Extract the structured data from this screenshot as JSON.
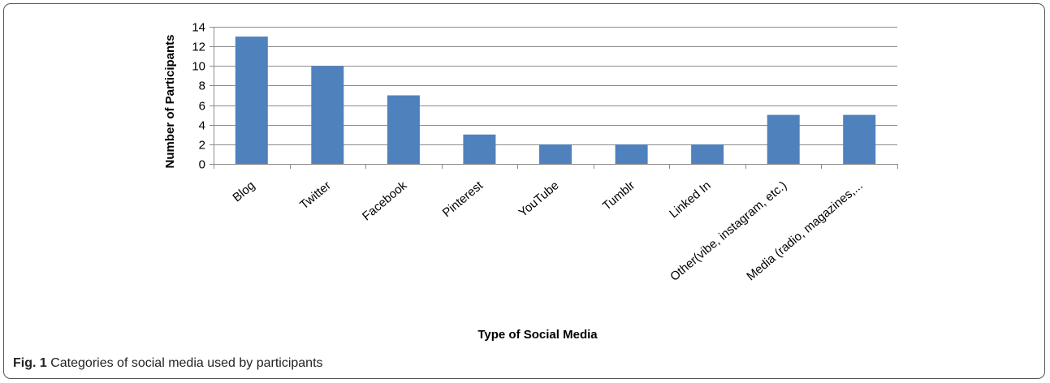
{
  "figure": {
    "label": "Fig. 1",
    "caption": " Categories of social media used by participants"
  },
  "chart_data": {
    "type": "bar",
    "categories": [
      "Blog",
      "Twitter",
      "Facebook",
      "Pinterest",
      "YouTube",
      "Tumblr",
      "Linked In",
      "Other(vibe, instagram, etc.)",
      "Media (radio, magazines,..."
    ],
    "values": [
      13,
      10,
      7,
      3,
      2,
      2,
      2,
      5,
      5
    ],
    "xlabel": "Type of Social Media",
    "ylabel": "Number of Participants",
    "ylim": [
      0,
      14
    ],
    "yticks": [
      0,
      2,
      4,
      6,
      8,
      10,
      12,
      14
    ],
    "grid": true,
    "legend": "none",
    "bar_color": "#4f81bd"
  }
}
